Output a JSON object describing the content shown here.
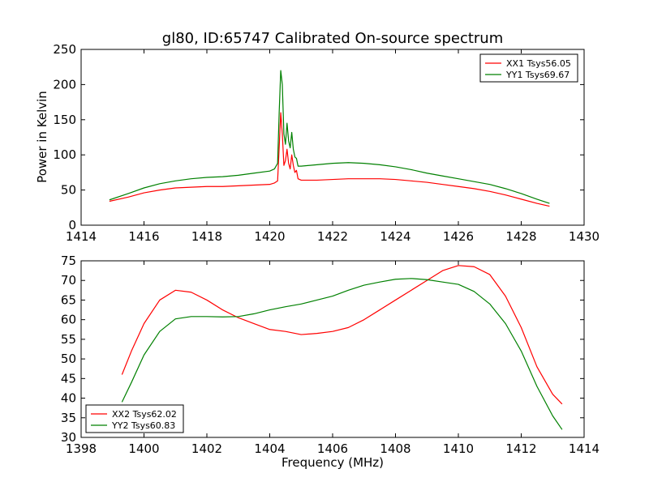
{
  "chart_data": [
    {
      "type": "line",
      "title": "gl80, ID:65747 Calibrated On-source spectrum",
      "xlabel": "",
      "ylabel": "Power in Kelvin",
      "xlim": [
        1414,
        1430
      ],
      "ylim": [
        0,
        250
      ],
      "xticks": [
        "1414",
        "1416",
        "1418",
        "1420",
        "1422",
        "1424",
        "1426",
        "1428",
        "1430"
      ],
      "yticks": [
        "0",
        "50",
        "100",
        "150",
        "200",
        "250"
      ],
      "legend_position": "top-right",
      "series": [
        {
          "name": "XX1 Tsys56.05",
          "color": "#ff0000",
          "x": [
            1414.9,
            1415.5,
            1416.0,
            1416.5,
            1417.0,
            1417.5,
            1418.0,
            1418.5,
            1419.0,
            1419.5,
            1420.0,
            1420.15,
            1420.25,
            1420.3,
            1420.35,
            1420.4,
            1420.45,
            1420.5,
            1420.55,
            1420.6,
            1420.65,
            1420.7,
            1420.75,
            1420.8,
            1420.85,
            1420.9,
            1421.0,
            1421.5,
            1422.0,
            1422.5,
            1423.0,
            1423.5,
            1424.0,
            1424.5,
            1425.0,
            1425.5,
            1426.0,
            1426.5,
            1427.0,
            1427.5,
            1428.0,
            1428.5,
            1428.9
          ],
          "values": [
            34,
            40,
            46,
            50,
            53,
            54,
            55,
            55,
            56,
            57,
            58,
            60,
            63,
            110,
            160,
            130,
            85,
            92,
            108,
            88,
            80,
            100,
            85,
            75,
            78,
            66,
            64,
            64,
            65,
            66,
            66,
            66,
            65,
            63,
            61,
            58,
            55,
            52,
            48,
            43,
            37,
            31,
            27
          ]
        },
        {
          "name": "YY1 Tsys69.67",
          "color": "#008000",
          "x": [
            1414.9,
            1415.5,
            1416.0,
            1416.5,
            1417.0,
            1417.5,
            1418.0,
            1418.5,
            1419.0,
            1419.5,
            1420.0,
            1420.15,
            1420.25,
            1420.3,
            1420.35,
            1420.4,
            1420.45,
            1420.5,
            1420.55,
            1420.6,
            1420.65,
            1420.7,
            1420.75,
            1420.8,
            1420.85,
            1420.9,
            1421.0,
            1421.5,
            1422.0,
            1422.5,
            1423.0,
            1423.5,
            1424.0,
            1424.5,
            1425.0,
            1425.5,
            1426.0,
            1426.5,
            1427.0,
            1427.5,
            1428.0,
            1428.5,
            1428.9
          ],
          "values": [
            36,
            45,
            53,
            59,
            63,
            66,
            68,
            69,
            71,
            74,
            77,
            80,
            88,
            160,
            220,
            200,
            130,
            115,
            145,
            120,
            110,
            132,
            108,
            97,
            95,
            84,
            84,
            86,
            88,
            89,
            88,
            86,
            83,
            79,
            74,
            70,
            66,
            62,
            58,
            52,
            45,
            37,
            31
          ]
        }
      ]
    },
    {
      "type": "line",
      "title": "",
      "xlabel": "Frequency (MHz)",
      "ylabel": "",
      "xlim": [
        1398,
        1414
      ],
      "ylim": [
        30,
        75
      ],
      "xticks": [
        "1398",
        "1400",
        "1402",
        "1404",
        "1406",
        "1408",
        "1410",
        "1412",
        "1414"
      ],
      "yticks": [
        "30",
        "35",
        "40",
        "45",
        "50",
        "55",
        "60",
        "65",
        "70",
        "75"
      ],
      "legend_position": "bottom-left",
      "series": [
        {
          "name": "XX2 Tsys62.02",
          "color": "#ff0000",
          "x": [
            1399.3,
            1399.6,
            1400.0,
            1400.5,
            1401.0,
            1401.5,
            1402.0,
            1402.5,
            1403.0,
            1403.5,
            1404.0,
            1404.5,
            1405.0,
            1405.5,
            1406.0,
            1406.5,
            1407.0,
            1407.5,
            1408.0,
            1408.5,
            1409.0,
            1409.5,
            1410.0,
            1410.5,
            1411.0,
            1411.5,
            1412.0,
            1412.5,
            1413.0,
            1413.3
          ],
          "values": [
            46,
            52,
            59,
            65,
            67.5,
            67,
            65,
            62.5,
            60.5,
            59,
            57.5,
            57,
            56.2,
            56.5,
            57,
            58,
            60,
            62.5,
            65,
            67.5,
            70,
            72.5,
            73.8,
            73.5,
            71.5,
            66,
            58,
            48,
            41,
            38.5
          ]
        },
        {
          "name": "YY2 Tsys60.83",
          "color": "#008000",
          "x": [
            1399.3,
            1399.6,
            1400.0,
            1400.5,
            1401.0,
            1401.5,
            1402.0,
            1402.5,
            1403.0,
            1403.5,
            1404.0,
            1404.5,
            1405.0,
            1405.5,
            1406.0,
            1406.5,
            1407.0,
            1407.5,
            1408.0,
            1408.5,
            1409.0,
            1409.5,
            1410.0,
            1410.5,
            1411.0,
            1411.5,
            1412.0,
            1412.5,
            1413.0,
            1413.3
          ],
          "values": [
            39,
            44,
            51,
            57,
            60.2,
            60.8,
            60.8,
            60.7,
            60.8,
            61.5,
            62.5,
            63.3,
            64,
            65,
            66,
            67.5,
            68.8,
            69.6,
            70.3,
            70.5,
            70.2,
            69.6,
            69,
            67.2,
            64,
            59,
            52,
            43,
            35.5,
            32
          ]
        }
      ]
    }
  ]
}
